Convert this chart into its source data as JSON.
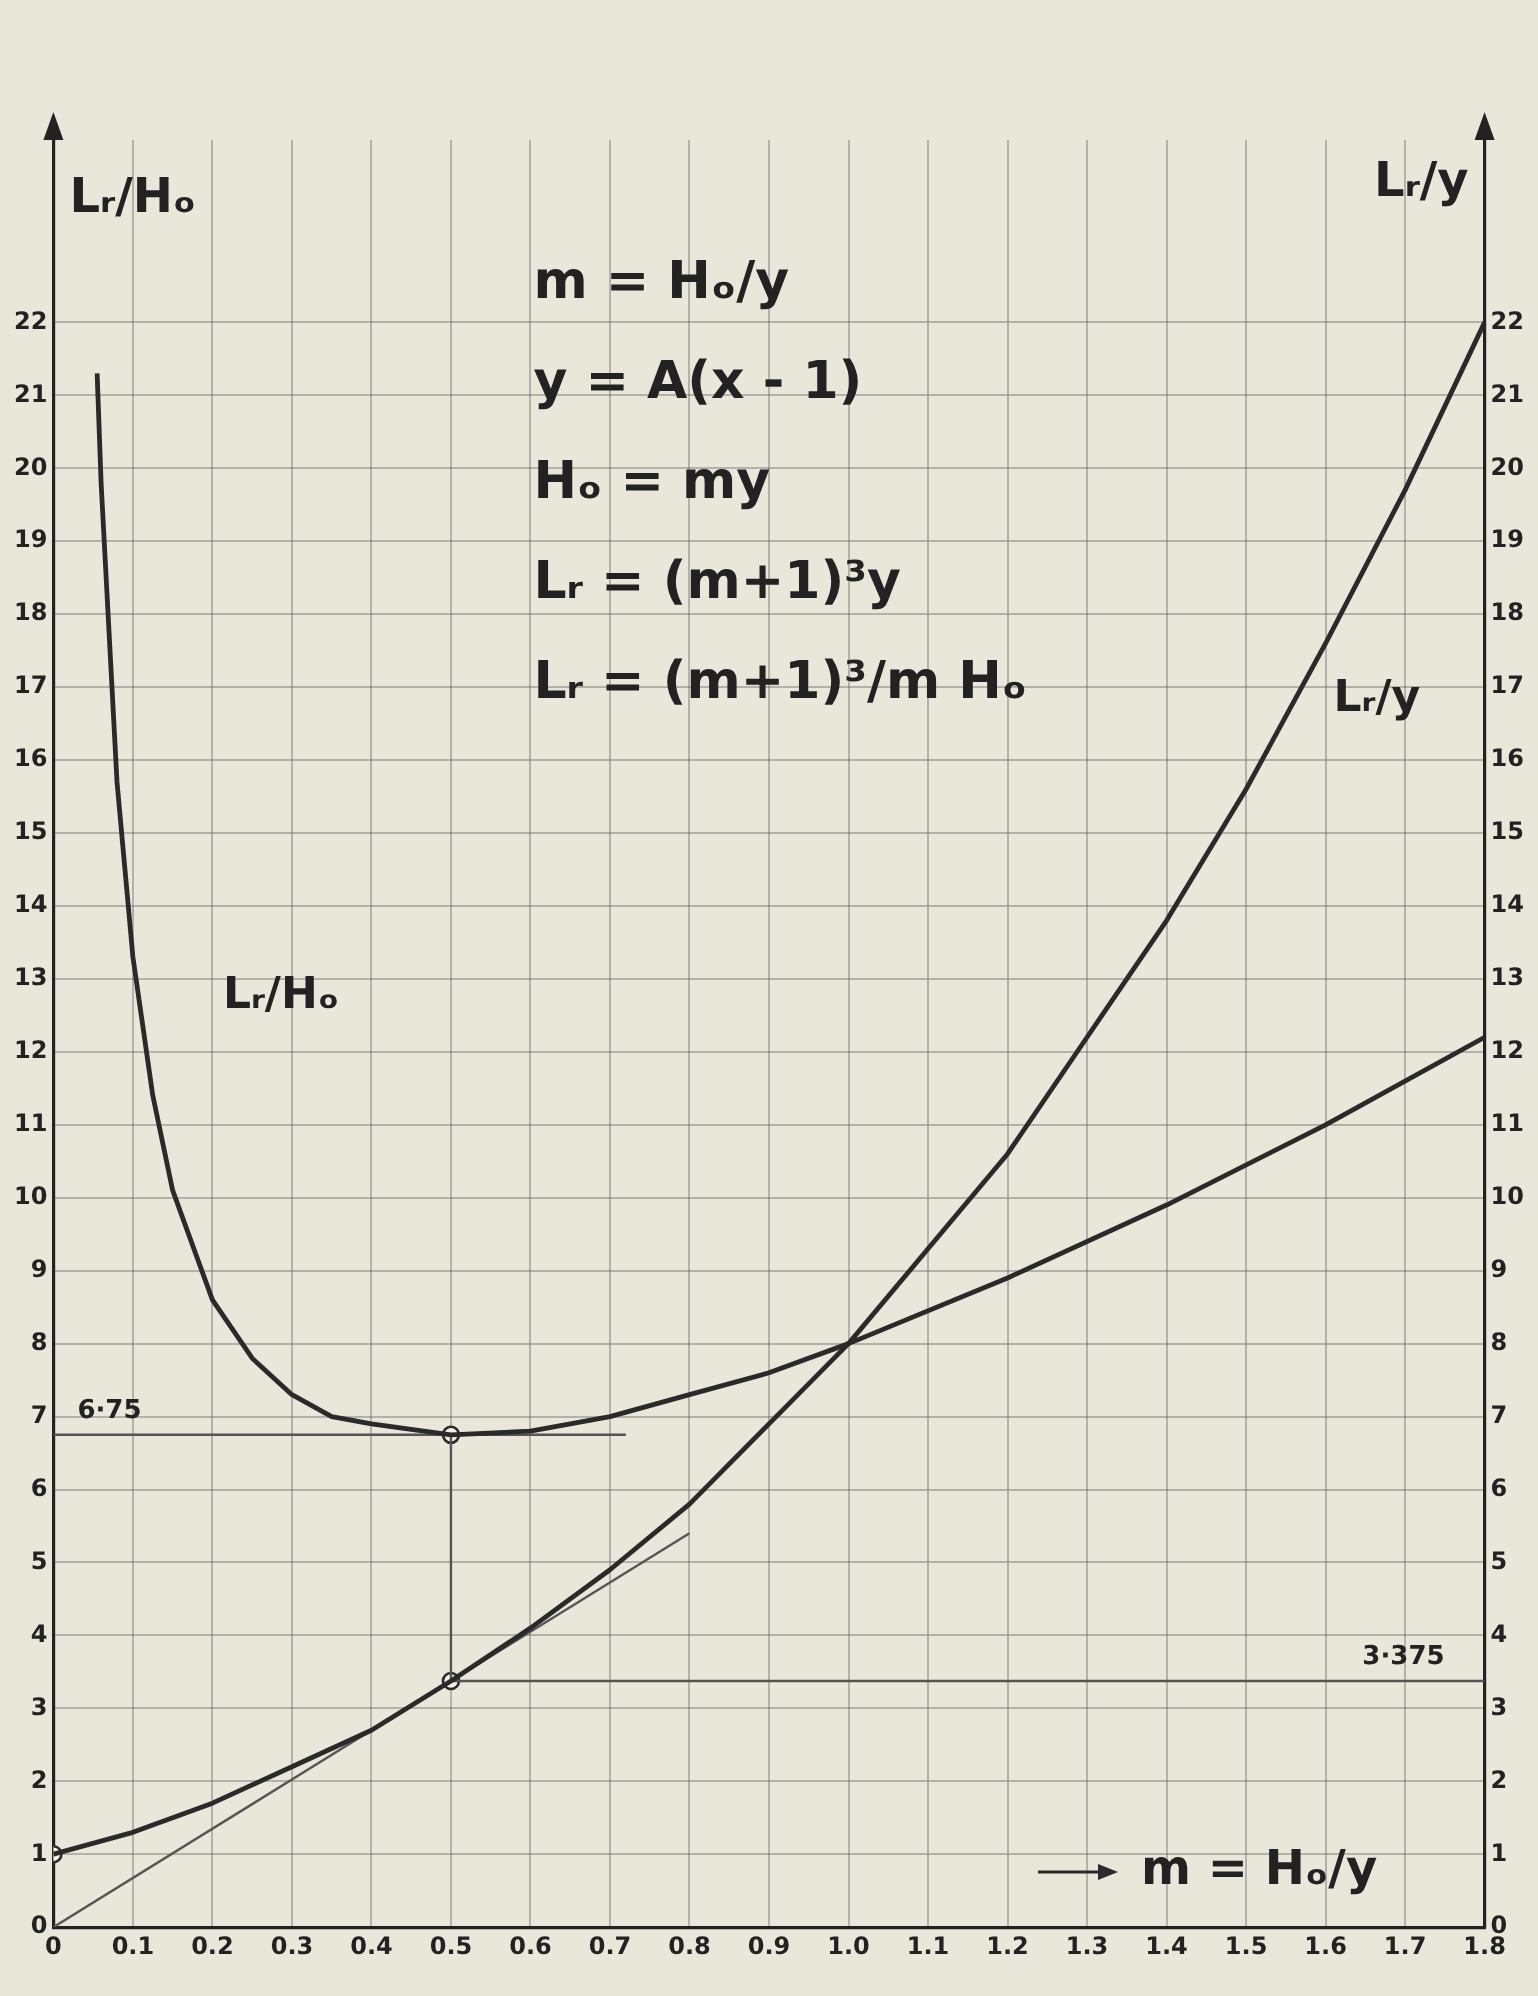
{
  "chart_data": {
    "type": "line",
    "xlabel": "m = Hₒ/y",
    "ylabel": "Lᵣ/Hₒ",
    "y2label": "Lᵣ/y",
    "xlim": [
      0,
      1.8
    ],
    "xticks": [
      0,
      0.1,
      0.2,
      0.3,
      0.4,
      0.5,
      0.6,
      0.7,
      0.8,
      0.9,
      {
        "value": 1.0,
        "label": "1.0"
      },
      1.1,
      1.2,
      1.3,
      1.4,
      1.5,
      1.6,
      1.7,
      1.8
    ],
    "ylim": [
      0,
      24.5
    ],
    "yticks": [
      0,
      1,
      2,
      3,
      4,
      5,
      6,
      7,
      8,
      9,
      10,
      11,
      12,
      13,
      14,
      15,
      16,
      17,
      18,
      19,
      20,
      21,
      22
    ],
    "y2lim": [
      0,
      24.5
    ],
    "y2ticks": [
      0,
      1,
      2,
      3,
      4,
      5,
      6,
      7,
      8,
      9,
      10,
      11,
      12,
      13,
      14,
      15,
      16,
      17,
      18,
      19,
      20,
      21,
      22
    ],
    "grid": true,
    "legend": false,
    "marker": "none",
    "line_style": "solid",
    "series": [
      {
        "name": "Lᵣ/Hₒ",
        "color": "#2a2a2a",
        "x": [
          0.055,
          0.06,
          0.08,
          0.1,
          0.125,
          0.15,
          0.2,
          0.25,
          0.3,
          0.35,
          0.4,
          0.5,
          0.6,
          0.7,
          0.8,
          0.9,
          1.0,
          1.2,
          1.4,
          1.6,
          1.8
        ],
        "values": [
          21.3,
          19.8,
          15.7,
          13.3,
          11.4,
          10.1,
          8.6,
          7.8,
          7.3,
          7.0,
          6.9,
          6.75,
          6.8,
          7.0,
          7.3,
          7.6,
          8.0,
          8.9,
          9.9,
          11.0,
          12.2
        ]
      },
      {
        "name": "Lᵣ/y",
        "color": "#2a2a2a",
        "x": [
          0,
          0.1,
          0.2,
          0.3,
          0.4,
          0.5,
          0.6,
          0.7,
          0.8,
          0.9,
          1.0,
          1.1,
          1.2,
          1.3,
          1.4,
          1.5,
          1.6,
          1.7,
          1.8
        ],
        "values": [
          1,
          1.3,
          1.7,
          2.2,
          2.7,
          3.375,
          4.1,
          4.9,
          5.8,
          6.9,
          8,
          9.3,
          10.6,
          12.2,
          13.8,
          15.6,
          17.6,
          19.7,
          22
        ]
      },
      {
        "color": "#555555",
        "x": [
          0,
          0.8
        ],
        "values": [
          0,
          5.4
        ]
      },
      {
        "name": "6·75",
        "color": "#555555",
        "x": [
          0,
          0.72
        ],
        "values": [
          6.75,
          6.75
        ]
      },
      {
        "name": "3·375",
        "color": "#555555",
        "x": [
          0.5,
          1.8
        ],
        "values": [
          3.375,
          3.375
        ]
      },
      {
        "color": "#555555",
        "x": [
          0.5,
          0.5
        ],
        "values": [
          3.375,
          6.75
        ]
      },
      {
        "type": "scatter",
        "color": "#2a2a2a",
        "marker": "circle",
        "x": [
          0,
          0.5,
          0.5
        ],
        "values": [
          1,
          3.375,
          6.75
        ]
      }
    ],
    "annotations": [
      "m = Hₒ/y",
      "y = A(x - 1)",
      "Hₒ = my",
      "Lᵣ = (m+1)³y",
      "Lᵣ = (m+1)³/m Hₒ"
    ]
  }
}
